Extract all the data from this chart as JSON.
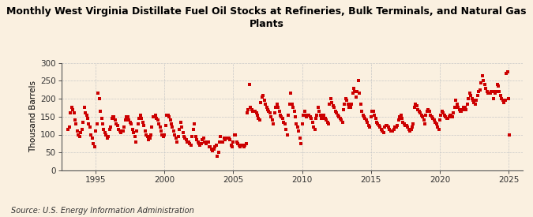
{
  "title": "Monthly West Virginia Distillate Fuel Oil Stocks at Refineries, Bulk Terminals, and Natural Gas\nPlants",
  "ylabel": "Thousand Barrels",
  "source": "Source: U.S. Energy Information Administration",
  "background_color": "#FAF0E0",
  "marker_color": "#CC0000",
  "grid_color": "#C8C8C8",
  "xlim": [
    1992.5,
    2026.0
  ],
  "ylim": [
    0,
    300
  ],
  "yticks": [
    0,
    50,
    100,
    150,
    200,
    250,
    300
  ],
  "xticks": [
    1995,
    2000,
    2005,
    2010,
    2015,
    2020,
    2025
  ],
  "data": [
    [
      1993.0,
      115
    ],
    [
      1993.08,
      120
    ],
    [
      1993.17,
      160
    ],
    [
      1993.25,
      175
    ],
    [
      1993.33,
      170
    ],
    [
      1993.42,
      160
    ],
    [
      1993.5,
      140
    ],
    [
      1993.58,
      130
    ],
    [
      1993.67,
      110
    ],
    [
      1993.75,
      100
    ],
    [
      1993.83,
      95
    ],
    [
      1993.92,
      105
    ],
    [
      1994.0,
      115
    ],
    [
      1994.08,
      135
    ],
    [
      1994.17,
      175
    ],
    [
      1994.25,
      160
    ],
    [
      1994.33,
      155
    ],
    [
      1994.42,
      145
    ],
    [
      1994.5,
      130
    ],
    [
      1994.58,
      120
    ],
    [
      1994.67,
      100
    ],
    [
      1994.75,
      90
    ],
    [
      1994.83,
      75
    ],
    [
      1994.92,
      65
    ],
    [
      1995.0,
      110
    ],
    [
      1995.08,
      130
    ],
    [
      1995.17,
      215
    ],
    [
      1995.25,
      200
    ],
    [
      1995.33,
      165
    ],
    [
      1995.42,
      145
    ],
    [
      1995.5,
      130
    ],
    [
      1995.58,
      115
    ],
    [
      1995.67,
      105
    ],
    [
      1995.75,
      100
    ],
    [
      1995.83,
      90
    ],
    [
      1995.92,
      95
    ],
    [
      1996.0,
      115
    ],
    [
      1996.08,
      120
    ],
    [
      1996.17,
      145
    ],
    [
      1996.25,
      150
    ],
    [
      1996.33,
      150
    ],
    [
      1996.42,
      140
    ],
    [
      1996.5,
      130
    ],
    [
      1996.58,
      125
    ],
    [
      1996.67,
      115
    ],
    [
      1996.75,
      110
    ],
    [
      1996.83,
      105
    ],
    [
      1996.92,
      110
    ],
    [
      1997.0,
      110
    ],
    [
      1997.08,
      120
    ],
    [
      1997.17,
      140
    ],
    [
      1997.25,
      150
    ],
    [
      1997.33,
      150
    ],
    [
      1997.42,
      140
    ],
    [
      1997.5,
      135
    ],
    [
      1997.58,
      130
    ],
    [
      1997.67,
      115
    ],
    [
      1997.75,
      105
    ],
    [
      1997.83,
      95
    ],
    [
      1997.92,
      80
    ],
    [
      1998.0,
      110
    ],
    [
      1998.08,
      130
    ],
    [
      1998.17,
      145
    ],
    [
      1998.25,
      155
    ],
    [
      1998.33,
      145
    ],
    [
      1998.42,
      135
    ],
    [
      1998.5,
      125
    ],
    [
      1998.58,
      110
    ],
    [
      1998.67,
      100
    ],
    [
      1998.75,
      95
    ],
    [
      1998.83,
      85
    ],
    [
      1998.92,
      90
    ],
    [
      1999.0,
      100
    ],
    [
      1999.08,
      120
    ],
    [
      1999.17,
      150
    ],
    [
      1999.25,
      150
    ],
    [
      1999.33,
      155
    ],
    [
      1999.42,
      145
    ],
    [
      1999.5,
      140
    ],
    [
      1999.58,
      130
    ],
    [
      1999.67,
      120
    ],
    [
      1999.75,
      110
    ],
    [
      1999.83,
      100
    ],
    [
      1999.92,
      95
    ],
    [
      2000.0,
      100
    ],
    [
      2000.08,
      125
    ],
    [
      2000.17,
      155
    ],
    [
      2000.25,
      155
    ],
    [
      2000.33,
      150
    ],
    [
      2000.42,
      140
    ],
    [
      2000.5,
      130
    ],
    [
      2000.58,
      120
    ],
    [
      2000.67,
      110
    ],
    [
      2000.75,
      100
    ],
    [
      2000.83,
      90
    ],
    [
      2000.92,
      80
    ],
    [
      2001.0,
      95
    ],
    [
      2001.08,
      115
    ],
    [
      2001.17,
      135
    ],
    [
      2001.25,
      120
    ],
    [
      2001.33,
      105
    ],
    [
      2001.42,
      95
    ],
    [
      2001.5,
      90
    ],
    [
      2001.58,
      85
    ],
    [
      2001.67,
      80
    ],
    [
      2001.75,
      80
    ],
    [
      2001.83,
      75
    ],
    [
      2001.92,
      70
    ],
    [
      2002.0,
      95
    ],
    [
      2002.08,
      115
    ],
    [
      2002.17,
      130
    ],
    [
      2002.25,
      95
    ],
    [
      2002.33,
      85
    ],
    [
      2002.42,
      80
    ],
    [
      2002.5,
      75
    ],
    [
      2002.58,
      70
    ],
    [
      2002.67,
      75
    ],
    [
      2002.75,
      85
    ],
    [
      2002.83,
      90
    ],
    [
      2002.92,
      80
    ],
    [
      2003.0,
      75
    ],
    [
      2003.08,
      80
    ],
    [
      2003.17,
      80
    ],
    [
      2003.25,
      65
    ],
    [
      2003.33,
      65
    ],
    [
      2003.42,
      60
    ],
    [
      2003.5,
      55
    ],
    [
      2003.58,
      60
    ],
    [
      2003.67,
      65
    ],
    [
      2003.75,
      70
    ],
    [
      2003.83,
      40
    ],
    [
      2003.92,
      50
    ],
    [
      2004.0,
      80
    ],
    [
      2004.08,
      95
    ],
    [
      2004.17,
      80
    ],
    [
      2004.25,
      80
    ],
    [
      2004.33,
      90
    ],
    [
      2004.42,
      85
    ],
    [
      2004.5,
      90
    ],
    [
      2004.58,
      90
    ],
    [
      2004.67,
      90
    ],
    [
      2004.75,
      85
    ],
    [
      2004.83,
      70
    ],
    [
      2004.92,
      65
    ],
    [
      2005.0,
      80
    ],
    [
      2005.08,
      100
    ],
    [
      2005.17,
      100
    ],
    [
      2005.25,
      80
    ],
    [
      2005.33,
      75
    ],
    [
      2005.42,
      70
    ],
    [
      2005.5,
      65
    ],
    [
      2005.58,
      70
    ],
    [
      2005.67,
      70
    ],
    [
      2005.75,
      65
    ],
    [
      2005.83,
      70
    ],
    [
      2005.92,
      75
    ],
    [
      2006.0,
      160
    ],
    [
      2006.08,
      170
    ],
    [
      2006.17,
      240
    ],
    [
      2006.25,
      175
    ],
    [
      2006.33,
      170
    ],
    [
      2006.42,
      165
    ],
    [
      2006.5,
      165
    ],
    [
      2006.58,
      165
    ],
    [
      2006.67,
      160
    ],
    [
      2006.75,
      155
    ],
    [
      2006.83,
      145
    ],
    [
      2006.92,
      140
    ],
    [
      2007.0,
      190
    ],
    [
      2007.08,
      205
    ],
    [
      2007.17,
      210
    ],
    [
      2007.25,
      195
    ],
    [
      2007.33,
      185
    ],
    [
      2007.42,
      175
    ],
    [
      2007.5,
      170
    ],
    [
      2007.58,
      165
    ],
    [
      2007.67,
      160
    ],
    [
      2007.75,
      150
    ],
    [
      2007.83,
      140
    ],
    [
      2007.92,
      130
    ],
    [
      2008.0,
      160
    ],
    [
      2008.08,
      175
    ],
    [
      2008.17,
      185
    ],
    [
      2008.25,
      175
    ],
    [
      2008.33,
      165
    ],
    [
      2008.42,
      155
    ],
    [
      2008.5,
      150
    ],
    [
      2008.58,
      145
    ],
    [
      2008.67,
      135
    ],
    [
      2008.75,
      130
    ],
    [
      2008.83,
      115
    ],
    [
      2008.92,
      100
    ],
    [
      2009.0,
      155
    ],
    [
      2009.08,
      185
    ],
    [
      2009.17,
      215
    ],
    [
      2009.25,
      185
    ],
    [
      2009.33,
      175
    ],
    [
      2009.42,
      165
    ],
    [
      2009.5,
      150
    ],
    [
      2009.58,
      130
    ],
    [
      2009.67,
      120
    ],
    [
      2009.75,
      110
    ],
    [
      2009.83,
      90
    ],
    [
      2009.92,
      75
    ],
    [
      2010.0,
      130
    ],
    [
      2010.08,
      155
    ],
    [
      2010.17,
      165
    ],
    [
      2010.25,
      155
    ],
    [
      2010.33,
      150
    ],
    [
      2010.42,
      155
    ],
    [
      2010.5,
      155
    ],
    [
      2010.58,
      150
    ],
    [
      2010.67,
      145
    ],
    [
      2010.75,
      135
    ],
    [
      2010.83,
      120
    ],
    [
      2010.92,
      115
    ],
    [
      2011.0,
      145
    ],
    [
      2011.08,
      155
    ],
    [
      2011.17,
      175
    ],
    [
      2011.25,
      165
    ],
    [
      2011.33,
      155
    ],
    [
      2011.42,
      145
    ],
    [
      2011.5,
      145
    ],
    [
      2011.58,
      155
    ],
    [
      2011.67,
      145
    ],
    [
      2011.75,
      140
    ],
    [
      2011.83,
      135
    ],
    [
      2011.92,
      130
    ],
    [
      2012.0,
      185
    ],
    [
      2012.08,
      200
    ],
    [
      2012.17,
      190
    ],
    [
      2012.25,
      180
    ],
    [
      2012.33,
      175
    ],
    [
      2012.42,
      165
    ],
    [
      2012.5,
      160
    ],
    [
      2012.58,
      155
    ],
    [
      2012.67,
      150
    ],
    [
      2012.75,
      145
    ],
    [
      2012.83,
      140
    ],
    [
      2012.92,
      135
    ],
    [
      2013.0,
      170
    ],
    [
      2013.08,
      185
    ],
    [
      2013.17,
      200
    ],
    [
      2013.25,
      195
    ],
    [
      2013.33,
      185
    ],
    [
      2013.42,
      175
    ],
    [
      2013.5,
      175
    ],
    [
      2013.58,
      185
    ],
    [
      2013.67,
      215
    ],
    [
      2013.75,
      230
    ],
    [
      2013.83,
      220
    ],
    [
      2013.92,
      205
    ],
    [
      2014.0,
      220
    ],
    [
      2014.08,
      250
    ],
    [
      2014.17,
      215
    ],
    [
      2014.25,
      185
    ],
    [
      2014.33,
      165
    ],
    [
      2014.42,
      155
    ],
    [
      2014.5,
      150
    ],
    [
      2014.58,
      145
    ],
    [
      2014.67,
      140
    ],
    [
      2014.75,
      135
    ],
    [
      2014.83,
      125
    ],
    [
      2014.92,
      120
    ],
    [
      2015.0,
      150
    ],
    [
      2015.08,
      165
    ],
    [
      2015.17,
      165
    ],
    [
      2015.25,
      155
    ],
    [
      2015.33,
      145
    ],
    [
      2015.42,
      135
    ],
    [
      2015.5,
      130
    ],
    [
      2015.58,
      125
    ],
    [
      2015.67,
      120
    ],
    [
      2015.75,
      115
    ],
    [
      2015.83,
      110
    ],
    [
      2015.92,
      105
    ],
    [
      2016.0,
      120
    ],
    [
      2016.08,
      125
    ],
    [
      2016.17,
      125
    ],
    [
      2016.25,
      120
    ],
    [
      2016.33,
      115
    ],
    [
      2016.42,
      110
    ],
    [
      2016.5,
      110
    ],
    [
      2016.58,
      110
    ],
    [
      2016.67,
      115
    ],
    [
      2016.75,
      120
    ],
    [
      2016.83,
      120
    ],
    [
      2016.92,
      125
    ],
    [
      2017.0,
      140
    ],
    [
      2017.08,
      150
    ],
    [
      2017.17,
      155
    ],
    [
      2017.25,
      145
    ],
    [
      2017.33,
      135
    ],
    [
      2017.42,
      130
    ],
    [
      2017.5,
      125
    ],
    [
      2017.58,
      125
    ],
    [
      2017.67,
      120
    ],
    [
      2017.75,
      115
    ],
    [
      2017.83,
      110
    ],
    [
      2017.92,
      115
    ],
    [
      2018.0,
      120
    ],
    [
      2018.08,
      130
    ],
    [
      2018.17,
      175
    ],
    [
      2018.25,
      185
    ],
    [
      2018.33,
      180
    ],
    [
      2018.42,
      170
    ],
    [
      2018.5,
      165
    ],
    [
      2018.58,
      160
    ],
    [
      2018.67,
      155
    ],
    [
      2018.75,
      150
    ],
    [
      2018.83,
      140
    ],
    [
      2018.92,
      130
    ],
    [
      2019.0,
      155
    ],
    [
      2019.08,
      165
    ],
    [
      2019.17,
      170
    ],
    [
      2019.25,
      165
    ],
    [
      2019.33,
      155
    ],
    [
      2019.42,
      150
    ],
    [
      2019.5,
      145
    ],
    [
      2019.58,
      140
    ],
    [
      2019.67,
      135
    ],
    [
      2019.75,
      130
    ],
    [
      2019.83,
      120
    ],
    [
      2019.92,
      115
    ],
    [
      2020.0,
      140
    ],
    [
      2020.08,
      155
    ],
    [
      2020.17,
      165
    ],
    [
      2020.25,
      160
    ],
    [
      2020.33,
      155
    ],
    [
      2020.42,
      150
    ],
    [
      2020.5,
      145
    ],
    [
      2020.58,
      145
    ],
    [
      2020.67,
      150
    ],
    [
      2020.75,
      155
    ],
    [
      2020.83,
      155
    ],
    [
      2020.92,
      150
    ],
    [
      2021.0,
      160
    ],
    [
      2021.08,
      175
    ],
    [
      2021.17,
      195
    ],
    [
      2021.25,
      185
    ],
    [
      2021.33,
      175
    ],
    [
      2021.42,
      170
    ],
    [
      2021.5,
      165
    ],
    [
      2021.58,
      165
    ],
    [
      2021.67,
      170
    ],
    [
      2021.75,
      175
    ],
    [
      2021.83,
      175
    ],
    [
      2021.92,
      170
    ],
    [
      2022.0,
      185
    ],
    [
      2022.08,
      200
    ],
    [
      2022.17,
      215
    ],
    [
      2022.25,
      210
    ],
    [
      2022.33,
      200
    ],
    [
      2022.42,
      195
    ],
    [
      2022.5,
      190
    ],
    [
      2022.58,
      185
    ],
    [
      2022.67,
      195
    ],
    [
      2022.75,
      210
    ],
    [
      2022.83,
      220
    ],
    [
      2022.92,
      225
    ],
    [
      2023.0,
      245
    ],
    [
      2023.08,
      265
    ],
    [
      2023.17,
      250
    ],
    [
      2023.25,
      240
    ],
    [
      2023.33,
      230
    ],
    [
      2023.42,
      220
    ],
    [
      2023.5,
      215
    ],
    [
      2023.58,
      215
    ],
    [
      2023.67,
      215
    ],
    [
      2023.75,
      220
    ],
    [
      2023.83,
      220
    ],
    [
      2023.92,
      200
    ],
    [
      2024.0,
      215
    ],
    [
      2024.08,
      220
    ],
    [
      2024.17,
      240
    ],
    [
      2024.25,
      235
    ],
    [
      2024.33,
      220
    ],
    [
      2024.42,
      210
    ],
    [
      2024.5,
      200
    ],
    [
      2024.58,
      195
    ],
    [
      2024.67,
      190
    ],
    [
      2024.75,
      195
    ],
    [
      2024.83,
      270
    ],
    [
      2024.92,
      275
    ],
    [
      2025.0,
      200
    ],
    [
      2025.08,
      100
    ]
  ]
}
